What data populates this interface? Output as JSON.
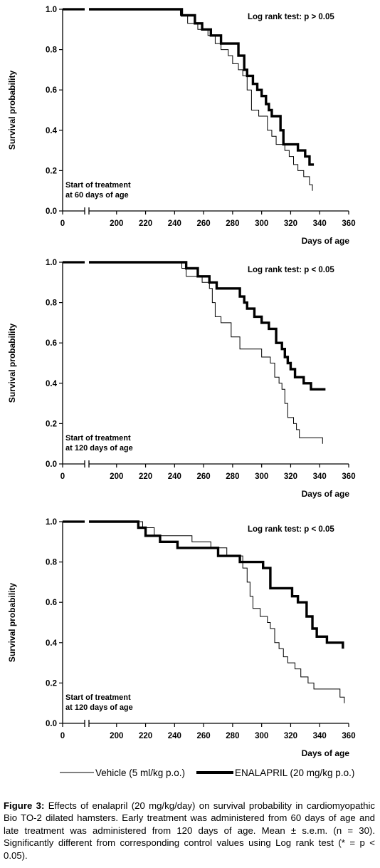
{
  "chart_data": [
    {
      "type": "line",
      "ylabel": "Survival probability",
      "xlabel": "Days of age",
      "annotation": "Log rank test: p > 0.05",
      "note_line1": "Start of treatment",
      "note_line2": "at 60 days of age",
      "xticks": [
        0,
        200,
        220,
        240,
        260,
        280,
        300,
        320,
        340,
        360
      ],
      "yticks": [
        0.0,
        0.2,
        0.4,
        0.6,
        0.8,
        1.0
      ],
      "ytick_labels": [
        "0.0",
        "0.2",
        "0.4",
        "0.6",
        "0.8",
        "1.0"
      ],
      "xlim": [
        180,
        360
      ],
      "ylim": [
        0,
        1
      ],
      "axis_break": true,
      "grid": false,
      "series": [
        {
          "name": "Vehicle (5 ml/kg p.o.)",
          "style": "thin",
          "x": [
            180,
            244,
            249,
            256,
            263,
            268,
            272,
            277,
            280,
            284,
            287,
            290,
            293,
            298,
            304,
            307,
            310,
            316,
            319,
            322,
            325,
            329,
            333,
            335
          ],
          "y": [
            1.0,
            0.97,
            0.93,
            0.9,
            0.87,
            0.83,
            0.8,
            0.77,
            0.73,
            0.7,
            0.67,
            0.6,
            0.5,
            0.47,
            0.4,
            0.37,
            0.33,
            0.3,
            0.27,
            0.23,
            0.2,
            0.17,
            0.13,
            0.1
          ]
        },
        {
          "name": "ENALAPRIL (20 mg/kg p.o.)",
          "style": "thick",
          "x": [
            180,
            245,
            254,
            259,
            265,
            272,
            284,
            288,
            290,
            294,
            297,
            300,
            303,
            305,
            307,
            313,
            315,
            318,
            325,
            330,
            333,
            336
          ],
          "y": [
            1.0,
            0.97,
            0.93,
            0.9,
            0.87,
            0.83,
            0.77,
            0.7,
            0.67,
            0.63,
            0.6,
            0.57,
            0.53,
            0.5,
            0.47,
            0.4,
            0.33,
            0.33,
            0.3,
            0.27,
            0.23,
            0.23
          ]
        }
      ]
    },
    {
      "type": "line",
      "ylabel": "Survival probability",
      "xlabel": "Days of age",
      "annotation": "Log rank test: p < 0.05",
      "note_line1": "Start of treatment",
      "note_line2": "at 120 days of age",
      "xticks": [
        0,
        200,
        220,
        240,
        260,
        280,
        300,
        320,
        340,
        360
      ],
      "yticks": [
        0.0,
        0.2,
        0.4,
        0.6,
        0.8,
        1.0
      ],
      "ytick_labels": [
        "0.0",
        "0.2",
        "0.4",
        "0.6",
        "0.8",
        "1.0"
      ],
      "xlim": [
        180,
        360
      ],
      "ylim": [
        0,
        1
      ],
      "axis_break": true,
      "grid": false,
      "series": [
        {
          "name": "Vehicle (5 ml/kg p.o.)",
          "style": "thin",
          "x": [
            180,
            245,
            248,
            259,
            264,
            266,
            268,
            272,
            279,
            285,
            300,
            306,
            309,
            312,
            314,
            316,
            318,
            322,
            324,
            326,
            330,
            342
          ],
          "y": [
            1.0,
            0.97,
            0.93,
            0.9,
            0.87,
            0.8,
            0.73,
            0.7,
            0.63,
            0.57,
            0.53,
            0.5,
            0.43,
            0.4,
            0.37,
            0.3,
            0.23,
            0.2,
            0.17,
            0.13,
            0.13,
            0.1
          ]
        },
        {
          "name": "ENALAPRIL (20 mg/kg p.o.)",
          "style": "thick",
          "x": [
            180,
            248,
            256,
            264,
            269,
            285,
            288,
            290,
            295,
            300,
            305,
            310,
            314,
            316,
            318,
            320,
            323,
            325,
            329,
            334,
            344
          ],
          "y": [
            1.0,
            0.97,
            0.93,
            0.9,
            0.87,
            0.83,
            0.8,
            0.77,
            0.73,
            0.7,
            0.67,
            0.6,
            0.57,
            0.53,
            0.5,
            0.47,
            0.43,
            0.43,
            0.4,
            0.37,
            0.37
          ]
        }
      ]
    },
    {
      "type": "line",
      "ylabel": "Survival probability",
      "xlabel": "Days of age",
      "annotation": "Log rank test: p < 0.05",
      "note_line1": "Start of treatment",
      "note_line2": "at 120 days of age",
      "xticks": [
        0,
        200,
        220,
        240,
        260,
        280,
        300,
        320,
        340,
        360
      ],
      "yticks": [
        0.0,
        0.2,
        0.4,
        0.6,
        0.8,
        1.0
      ],
      "ytick_labels": [
        "0.0",
        "0.2",
        "0.4",
        "0.6",
        "0.8",
        "1.0"
      ],
      "xlim": [
        180,
        360
      ],
      "ylim": [
        0,
        1
      ],
      "axis_break": true,
      "grid": false,
      "series": [
        {
          "name": "Vehicle (5 ml/kg p.o.)",
          "style": "thin",
          "x": [
            180,
            218,
            226,
            252,
            265,
            276,
            287,
            290,
            292,
            294,
            299,
            304,
            306,
            309,
            312,
            315,
            318,
            323,
            327,
            332,
            336,
            345,
            354,
            357
          ],
          "y": [
            1.0,
            0.97,
            0.93,
            0.9,
            0.87,
            0.83,
            0.77,
            0.7,
            0.63,
            0.57,
            0.53,
            0.5,
            0.47,
            0.4,
            0.37,
            0.33,
            0.3,
            0.27,
            0.23,
            0.2,
            0.17,
            0.17,
            0.13,
            0.1
          ]
        },
        {
          "name": "ENALAPRIL (20 mg/kg p.o.)",
          "style": "thick",
          "x": [
            180,
            215,
            220,
            230,
            242,
            254,
            270,
            285,
            301,
            306,
            321,
            325,
            331,
            335,
            338,
            345,
            352,
            356
          ],
          "y": [
            1.0,
            0.97,
            0.93,
            0.9,
            0.87,
            0.87,
            0.83,
            0.8,
            0.77,
            0.67,
            0.63,
            0.6,
            0.53,
            0.47,
            0.43,
            0.4,
            0.4,
            0.37
          ]
        }
      ]
    }
  ],
  "legend": {
    "vehicle_label": "Vehicle (5 ml/kg p.o.)",
    "enalapril_label": "ENALAPRIL (20 mg/kg p.o.)"
  },
  "caption": {
    "label": "Figure 3:",
    "text": " Effects of enalapril (20 mg/kg/day) on survival probability in cardiomyopathic Bio TO-2 dilated hamsters. Early treatment was administered from 60 days of age and late treatment was administered from 120 days of age. Mean ± s.e.m. (n = 30). Significantly different from corresponding control values using Log rank test (* = p < 0.05)."
  }
}
